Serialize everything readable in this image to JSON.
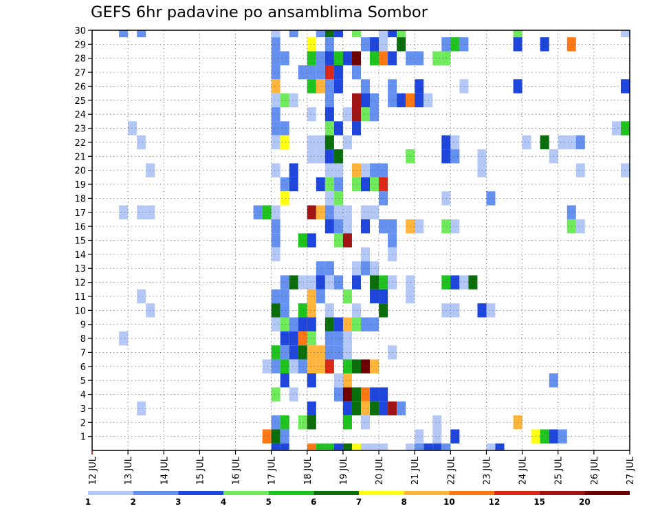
{
  "chart_data": {
    "type": "heatmap",
    "title": "GEFS 6hr padavine po ansamblima Sombor",
    "xlabel": "",
    "ylabel": "",
    "x_ticks": [
      "12 JUL",
      "13 JUL",
      "14 JUL",
      "15 JUL",
      "16 JUL",
      "17 JUL",
      "18 JUL",
      "19 JUL",
      "20 JUL",
      "21 JUL",
      "22 JUL",
      "23 JUL",
      "24 JUL",
      "25 JUL",
      "26 JUL",
      "27 JUL"
    ],
    "y_ticks": [
      "1",
      "2",
      "3",
      "4",
      "5",
      "6",
      "7",
      "8",
      "9",
      "10",
      "11",
      "12",
      "13",
      "14",
      "15",
      "16",
      "17",
      "18",
      "19",
      "20",
      "21",
      "22",
      "23",
      "24",
      "25",
      "26",
      "27",
      "28",
      "29",
      "30"
    ],
    "xlim": [
      0,
      60
    ],
    "ylim": [
      0,
      30
    ],
    "grid": true,
    "colorbar": {
      "levels": [
        "1",
        "2",
        "3",
        "4",
        "5",
        "6",
        "7",
        "8",
        "10",
        "12",
        "15",
        "20"
      ],
      "colors": [
        "#b4c8f8",
        "#6490f0",
        "#1e46dc",
        "#6eea5a",
        "#1ec31e",
        "#0a6e0a",
        "#ffff14",
        "#ffb43c",
        "#ff7814",
        "#dc2814",
        "#a01414",
        "#6e0000"
      ]
    },
    "cells": [
      [
        30,
        20,
        0
      ],
      [
        30,
        3,
        1
      ],
      [
        30,
        5,
        1
      ],
      [
        30,
        22,
        1
      ],
      [
        30,
        33,
        2
      ],
      [
        30,
        47,
        3
      ],
      [
        30,
        59,
        0
      ],
      [
        30,
        32,
        0
      ],
      [
        30,
        34,
        3
      ],
      [
        30,
        29,
        3
      ],
      [
        30,
        26,
        5
      ],
      [
        30,
        27,
        2
      ],
      [
        30,
        25,
        1
      ],
      [
        29,
        20,
        1
      ],
      [
        29,
        24,
        6
      ],
      [
        29,
        26,
        1
      ],
      [
        29,
        30,
        1
      ],
      [
        29,
        31,
        2
      ],
      [
        29,
        34,
        5
      ],
      [
        29,
        39,
        1
      ],
      [
        29,
        40,
        4
      ],
      [
        29,
        41,
        1
      ],
      [
        29,
        50,
        2
      ],
      [
        29,
        53,
        8
      ],
      [
        29,
        47,
        2
      ],
      [
        29,
        32,
        0
      ],
      [
        28,
        20,
        1
      ],
      [
        28,
        21,
        1
      ],
      [
        28,
        24,
        4
      ],
      [
        28,
        25,
        1
      ],
      [
        28,
        26,
        2
      ],
      [
        28,
        27,
        4
      ],
      [
        28,
        28,
        2
      ],
      [
        28,
        29,
        11
      ],
      [
        28,
        31,
        4
      ],
      [
        28,
        32,
        8
      ],
      [
        28,
        35,
        1
      ],
      [
        28,
        36,
        1
      ],
      [
        28,
        38,
        3
      ],
      [
        28,
        39,
        3
      ],
      [
        28,
        33,
        2
      ],
      [
        27,
        20,
        1
      ],
      [
        27,
        23,
        1
      ],
      [
        27,
        24,
        1
      ],
      [
        27,
        26,
        9
      ],
      [
        27,
        27,
        2
      ],
      [
        27,
        29,
        1
      ],
      [
        27,
        25,
        1
      ],
      [
        26,
        20,
        7
      ],
      [
        26,
        24,
        4
      ],
      [
        26,
        25,
        7
      ],
      [
        26,
        26,
        1
      ],
      [
        26,
        27,
        2
      ],
      [
        26,
        30,
        1
      ],
      [
        26,
        33,
        1
      ],
      [
        26,
        36,
        2
      ],
      [
        26,
        41,
        0
      ],
      [
        26,
        47,
        2
      ],
      [
        26,
        59,
        2
      ],
      [
        25,
        20,
        0
      ],
      [
        25,
        21,
        3
      ],
      [
        25,
        22,
        0
      ],
      [
        25,
        26,
        1
      ],
      [
        25,
        29,
        10
      ],
      [
        25,
        30,
        2
      ],
      [
        25,
        31,
        1
      ],
      [
        25,
        33,
        1
      ],
      [
        25,
        34,
        2
      ],
      [
        25,
        35,
        8
      ],
      [
        25,
        36,
        2
      ],
      [
        25,
        37,
        0
      ],
      [
        24,
        20,
        1
      ],
      [
        24,
        24,
        0
      ],
      [
        24,
        26,
        2
      ],
      [
        24,
        28,
        0
      ],
      [
        24,
        29,
        10
      ],
      [
        24,
        30,
        3
      ],
      [
        24,
        31,
        1
      ],
      [
        23,
        4,
        0
      ],
      [
        23,
        20,
        1
      ],
      [
        23,
        21,
        1
      ],
      [
        23,
        26,
        3
      ],
      [
        23,
        27,
        2
      ],
      [
        23,
        29,
        2
      ],
      [
        23,
        58,
        0
      ],
      [
        23,
        59,
        4
      ],
      [
        22,
        5,
        0
      ],
      [
        22,
        20,
        0
      ],
      [
        22,
        21,
        6
      ],
      [
        22,
        24,
        0
      ],
      [
        22,
        25,
        0
      ],
      [
        22,
        26,
        5
      ],
      [
        22,
        28,
        0
      ],
      [
        22,
        39,
        2
      ],
      [
        22,
        40,
        0
      ],
      [
        22,
        48,
        0
      ],
      [
        22,
        50,
        5
      ],
      [
        22,
        52,
        0
      ],
      [
        22,
        53,
        0
      ],
      [
        22,
        54,
        1
      ],
      [
        21,
        24,
        0
      ],
      [
        21,
        25,
        0
      ],
      [
        21,
        26,
        2
      ],
      [
        21,
        27,
        5
      ],
      [
        21,
        35,
        3
      ],
      [
        21,
        39,
        2
      ],
      [
        21,
        40,
        1
      ],
      [
        21,
        43,
        0
      ],
      [
        21,
        51,
        0
      ],
      [
        20,
        6,
        0
      ],
      [
        20,
        20,
        0
      ],
      [
        20,
        22,
        2
      ],
      [
        20,
        26,
        0
      ],
      [
        20,
        27,
        0
      ],
      [
        20,
        29,
        7
      ],
      [
        20,
        30,
        0
      ],
      [
        20,
        31,
        1
      ],
      [
        20,
        32,
        1
      ],
      [
        20,
        43,
        0
      ],
      [
        20,
        54,
        0
      ],
      [
        20,
        59,
        0
      ],
      [
        19,
        21,
        1
      ],
      [
        19,
        22,
        2
      ],
      [
        19,
        25,
        2
      ],
      [
        19,
        26,
        3
      ],
      [
        19,
        27,
        1
      ],
      [
        19,
        29,
        3
      ],
      [
        19,
        30,
        2
      ],
      [
        19,
        31,
        3
      ],
      [
        19,
        32,
        9
      ],
      [
        18,
        21,
        6
      ],
      [
        18,
        26,
        0
      ],
      [
        18,
        27,
        3
      ],
      [
        18,
        32,
        1
      ],
      [
        18,
        39,
        0
      ],
      [
        18,
        44,
        1
      ],
      [
        17,
        3,
        0
      ],
      [
        17,
        5,
        0
      ],
      [
        17,
        6,
        0
      ],
      [
        17,
        18,
        1
      ],
      [
        17,
        19,
        4
      ],
      [
        17,
        20,
        0
      ],
      [
        17,
        24,
        10
      ],
      [
        17,
        25,
        7
      ],
      [
        17,
        26,
        1
      ],
      [
        17,
        27,
        0
      ],
      [
        17,
        28,
        0
      ],
      [
        17,
        30,
        0
      ],
      [
        17,
        31,
        0
      ],
      [
        17,
        53,
        1
      ],
      [
        16,
        20,
        1
      ],
      [
        16,
        26,
        2
      ],
      [
        16,
        27,
        1
      ],
      [
        16,
        28,
        0
      ],
      [
        16,
        30,
        2
      ],
      [
        16,
        32,
        1
      ],
      [
        16,
        33,
        1
      ],
      [
        16,
        35,
        7
      ],
      [
        16,
        36,
        0
      ],
      [
        16,
        39,
        3
      ],
      [
        16,
        40,
        0
      ],
      [
        16,
        53,
        3
      ],
      [
        16,
        54,
        0
      ],
      [
        15,
        20,
        1
      ],
      [
        15,
        23,
        4
      ],
      [
        15,
        24,
        2
      ],
      [
        15,
        27,
        3
      ],
      [
        15,
        28,
        10
      ],
      [
        15,
        33,
        1
      ],
      [
        14,
        20,
        0
      ],
      [
        14,
        30,
        0
      ],
      [
        14,
        33,
        0
      ],
      [
        13,
        25,
        1
      ],
      [
        13,
        26,
        1
      ],
      [
        13,
        29,
        0
      ],
      [
        13,
        30,
        1
      ],
      [
        13,
        31,
        0
      ],
      [
        12,
        21,
        1
      ],
      [
        12,
        22,
        5
      ],
      [
        12,
        23,
        0
      ],
      [
        12,
        24,
        0
      ],
      [
        12,
        25,
        2
      ],
      [
        12,
        26,
        0
      ],
      [
        12,
        27,
        1
      ],
      [
        12,
        29,
        2
      ],
      [
        12,
        31,
        5
      ],
      [
        12,
        32,
        4
      ],
      [
        12,
        33,
        0
      ],
      [
        12,
        35,
        0
      ],
      [
        12,
        39,
        4
      ],
      [
        12,
        40,
        2
      ],
      [
        12,
        41,
        0
      ],
      [
        12,
        42,
        5
      ],
      [
        11,
        5,
        0
      ],
      [
        11,
        20,
        1
      ],
      [
        11,
        21,
        1
      ],
      [
        11,
        24,
        7
      ],
      [
        11,
        25,
        1
      ],
      [
        11,
        28,
        3
      ],
      [
        11,
        31,
        2
      ],
      [
        11,
        32,
        2
      ],
      [
        11,
        35,
        0
      ],
      [
        10,
        6,
        0
      ],
      [
        10,
        20,
        5
      ],
      [
        10,
        21,
        1
      ],
      [
        10,
        23,
        4
      ],
      [
        10,
        24,
        7
      ],
      [
        10,
        26,
        0
      ],
      [
        10,
        29,
        0
      ],
      [
        10,
        32,
        5
      ],
      [
        10,
        39,
        0
      ],
      [
        10,
        40,
        0
      ],
      [
        10,
        43,
        2
      ],
      [
        10,
        44,
        0
      ],
      [
        9,
        20,
        0
      ],
      [
        9,
        21,
        3
      ],
      [
        9,
        22,
        1
      ],
      [
        9,
        23,
        2
      ],
      [
        9,
        24,
        2
      ],
      [
        9,
        26,
        5
      ],
      [
        9,
        27,
        2
      ],
      [
        9,
        28,
        7
      ],
      [
        9,
        29,
        3
      ],
      [
        9,
        30,
        1
      ],
      [
        9,
        31,
        1
      ],
      [
        8,
        3,
        0
      ],
      [
        8,
        21,
        2
      ],
      [
        8,
        22,
        2
      ],
      [
        8,
        23,
        8
      ],
      [
        8,
        24,
        3
      ],
      [
        8,
        26,
        1
      ],
      [
        8,
        27,
        1
      ],
      [
        8,
        28,
        0
      ],
      [
        7,
        20,
        4
      ],
      [
        7,
        21,
        1
      ],
      [
        7,
        22,
        2
      ],
      [
        7,
        23,
        5
      ],
      [
        7,
        24,
        7
      ],
      [
        7,
        25,
        7
      ],
      [
        7,
        26,
        1
      ],
      [
        7,
        27,
        1
      ],
      [
        7,
        28,
        0
      ],
      [
        7,
        33,
        0
      ],
      [
        6,
        19,
        0
      ],
      [
        6,
        20,
        1
      ],
      [
        6,
        21,
        4
      ],
      [
        6,
        22,
        0
      ],
      [
        6,
        23,
        1
      ],
      [
        6,
        24,
        7
      ],
      [
        6,
        25,
        7
      ],
      [
        6,
        26,
        9
      ],
      [
        6,
        28,
        4
      ],
      [
        6,
        29,
        5
      ],
      [
        6,
        30,
        11
      ],
      [
        6,
        31,
        7
      ],
      [
        5,
        21,
        2
      ],
      [
        5,
        24,
        2
      ],
      [
        5,
        27,
        0
      ],
      [
        5,
        28,
        7
      ],
      [
        5,
        51,
        1
      ],
      [
        4,
        20,
        3
      ],
      [
        4,
        22,
        0
      ],
      [
        4,
        27,
        1
      ],
      [
        4,
        28,
        11
      ],
      [
        4,
        29,
        5
      ],
      [
        4,
        30,
        8
      ],
      [
        4,
        31,
        2
      ],
      [
        4,
        32,
        2
      ],
      [
        3,
        5,
        0
      ],
      [
        3,
        24,
        2
      ],
      [
        3,
        28,
        2
      ],
      [
        3,
        29,
        5
      ],
      [
        3,
        30,
        7
      ],
      [
        3,
        31,
        5
      ],
      [
        3,
        32,
        2
      ],
      [
        3,
        33,
        10
      ],
      [
        3,
        34,
        1
      ],
      [
        2,
        20,
        1
      ],
      [
        2,
        21,
        4
      ],
      [
        2,
        23,
        3
      ],
      [
        2,
        24,
        5
      ],
      [
        2,
        28,
        4
      ],
      [
        2,
        30,
        0
      ],
      [
        2,
        38,
        0
      ],
      [
        2,
        47,
        7
      ],
      [
        1,
        19,
        8
      ],
      [
        1,
        20,
        5
      ],
      [
        1,
        21,
        1
      ],
      [
        1,
        36,
        0
      ],
      [
        1,
        38,
        0
      ],
      [
        1,
        40,
        2
      ],
      [
        1,
        49,
        6
      ],
      [
        1,
        50,
        4
      ],
      [
        1,
        51,
        2
      ],
      [
        1,
        52,
        1
      ],
      [
        0,
        20,
        2
      ],
      [
        0,
        21,
        2
      ],
      [
        0,
        24,
        8
      ],
      [
        0,
        25,
        4
      ],
      [
        0,
        26,
        4
      ],
      [
        0,
        27,
        2
      ],
      [
        0,
        28,
        5
      ],
      [
        0,
        29,
        6
      ],
      [
        0,
        30,
        0
      ],
      [
        0,
        31,
        0
      ],
      [
        0,
        32,
        0
      ],
      [
        0,
        37,
        2
      ],
      [
        0,
        38,
        2
      ],
      [
        0,
        39,
        1
      ],
      [
        0,
        35,
        0
      ],
      [
        0,
        36,
        1
      ],
      [
        0,
        44,
        0
      ],
      [
        0,
        45,
        2
      ]
    ]
  }
}
